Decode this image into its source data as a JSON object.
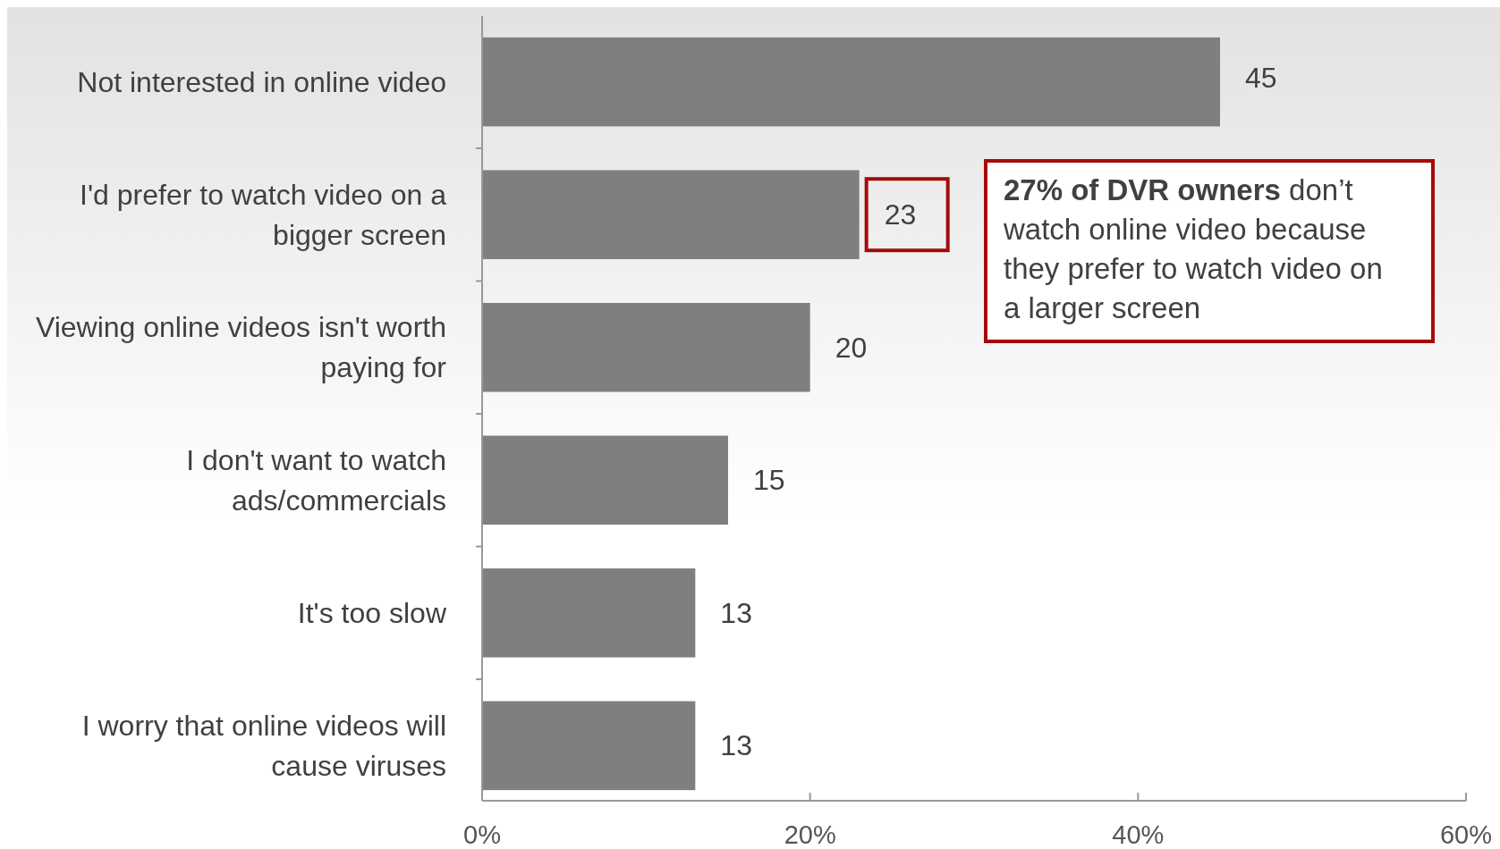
{
  "chart_data": {
    "type": "bar",
    "orientation": "horizontal",
    "categories": [
      "Not interested in online video",
      "I'd prefer to watch video on a bigger screen",
      "Viewing online videos isn't worth paying for",
      "I don't want to watch ads/commercials",
      "It's too slow",
      "I worry that online videos will cause viruses"
    ],
    "values": [
      45,
      23,
      20,
      15,
      13,
      13
    ],
    "color": "#7f7f7f",
    "data_labels": true,
    "xlim": [
      0,
      60
    ],
    "xticks": [
      {
        "value": 0,
        "label": "0%"
      },
      {
        "value": 20,
        "label": "20%"
      },
      {
        "value": 40,
        "label": "40%"
      },
      {
        "value": 60,
        "label": "60%"
      }
    ],
    "annotations": [
      "27% of DVR owners don’t watch online video because they prefer to watch video on a larger screen"
    ]
  }
}
